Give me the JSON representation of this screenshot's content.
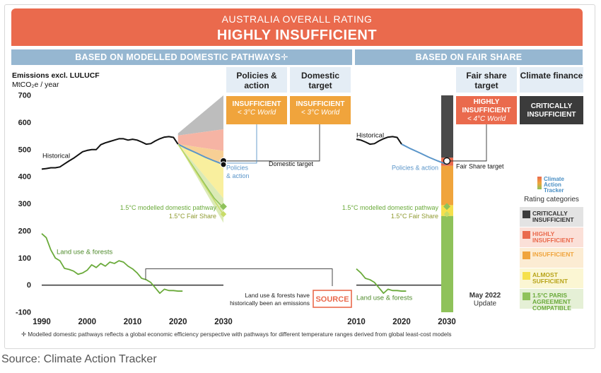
{
  "header": {
    "subtitle": "AUSTRALIA OVERALL RATING",
    "title": "HIGHLY INSUFFICIENT"
  },
  "sections": {
    "left": "BASED ON MODELLED DOMESTIC PATHWAYS✛",
    "right": "BASED ON FAIR SHARE"
  },
  "columns": {
    "policies": "Policies & action",
    "domestic": "Domestic target",
    "fairshare": "Fair share target",
    "finance": "Climate finance"
  },
  "ratings": {
    "policies": {
      "label": "INSUFFICIENT",
      "sub": "< 3°C World",
      "color": "#f0a43c"
    },
    "domestic": {
      "label": "INSUFFICIENT",
      "sub": "< 3°C World",
      "color": "#f0a43c"
    },
    "fairshare": {
      "label": "HIGHLY INSUFFICIENT",
      "sub": "< 4°C World",
      "color": "#ea6a4d"
    },
    "finance": {
      "label": "CRITICALLY INSUFFICIENT",
      "sub": "",
      "color": "#3b3b3b"
    }
  },
  "yaxis": {
    "title": "Emissions excl. LULUCF",
    "unit": "MtCO₂e / year"
  },
  "chart_data": [
    {
      "type": "line",
      "title": "",
      "ylim": [
        -100,
        700
      ],
      "yticks": [
        -100,
        0,
        100,
        200,
        300,
        400,
        500,
        600,
        700
      ],
      "xlim": [
        1990,
        2030
      ],
      "xticks": [
        1990,
        2000,
        2010,
        2020,
        2030
      ],
      "series": [
        {
          "name": "Historical",
          "color": "#111111",
          "x": [
            1990,
            1991,
            1992,
            1993,
            1994,
            1995,
            1996,
            1997,
            1998,
            1999,
            2000,
            2001,
            2002,
            2003,
            2004,
            2005,
            2006,
            2007,
            2008,
            2009,
            2010,
            2011,
            2012,
            2013,
            2014,
            2015,
            2016,
            2017,
            2018,
            2019,
            2020
          ],
          "y": [
            428,
            430,
            433,
            433,
            436,
            447,
            458,
            468,
            480,
            492,
            497,
            500,
            500,
            518,
            525,
            530,
            535,
            540,
            540,
            535,
            538,
            535,
            528,
            520,
            522,
            532,
            540,
            546,
            548,
            545,
            520
          ]
        },
        {
          "name": "Land use & forests",
          "color": "#6aaa3a",
          "x": [
            1990,
            1991,
            1992,
            1993,
            1994,
            1995,
            1996,
            1997,
            1998,
            1999,
            2000,
            2001,
            2002,
            2003,
            2004,
            2005,
            2006,
            2007,
            2008,
            2009,
            2010,
            2011,
            2012,
            2013,
            2014,
            2015,
            2016,
            2017,
            2018,
            2019,
            2020,
            2021
          ],
          "y": [
            190,
            175,
            130,
            100,
            90,
            62,
            58,
            52,
            40,
            45,
            55,
            75,
            65,
            80,
            70,
            85,
            80,
            90,
            85,
            70,
            60,
            45,
            25,
            20,
            10,
            -10,
            -30,
            -15,
            -20,
            -20,
            -22,
            -22
          ]
        },
        {
          "name": "Policies & action",
          "color": "#5a95c9",
          "x": [
            2020,
            2022,
            2024,
            2026,
            2028,
            2030
          ],
          "y": [
            520,
            503,
            488,
            472,
            458,
            445
          ]
        },
        {
          "name": "1.5°C modelled domestic pathway",
          "color": "#8fc25a",
          "x": [
            2020,
            2022,
            2024,
            2026,
            2028,
            2030
          ],
          "y": [
            520,
            470,
            420,
            370,
            320,
            285
          ]
        },
        {
          "name": "1.5°C Fair Share",
          "color": "#c8dc68",
          "x": [
            2020,
            2030
          ],
          "y": [
            520,
            260
          ]
        }
      ],
      "domestic_target": 2030,
      "domestic_target_value": 458,
      "annotations": {
        "historical": "Historical",
        "policies": "Policies & action",
        "domestic_target": "Domestic target",
        "pathway_15": "1.5°C modelled domestic pathway",
        "fairshare_15": "1.5°C Fair Share",
        "landuse": "Land use & forests",
        "landuse_note": "Land use & forests have historically been an emissions",
        "source_button": "SOURCE"
      }
    },
    {
      "type": "line",
      "title": "",
      "ylim": [
        -100,
        700
      ],
      "xlim": [
        2010,
        2030
      ],
      "xticks": [
        2010,
        2020,
        2030
      ],
      "series": [
        {
          "name": "Historical",
          "color": "#111111",
          "x": [
            2010,
            2011,
            2012,
            2013,
            2014,
            2015,
            2016,
            2017,
            2018,
            2019,
            2020
          ],
          "y": [
            538,
            535,
            528,
            520,
            522,
            532,
            540,
            546,
            548,
            545,
            520
          ]
        },
        {
          "name": "Policies & action",
          "color": "#5a95c9",
          "x": [
            2020,
            2022,
            2024,
            2026,
            2028,
            2030
          ],
          "y": [
            520,
            503,
            488,
            472,
            458,
            445
          ]
        },
        {
          "name": "Land use & forests",
          "color": "#6aaa3a",
          "x": [
            2010,
            2011,
            2012,
            2013,
            2014,
            2015,
            2016,
            2017,
            2018,
            2019,
            2020,
            2021
          ],
          "y": [
            60,
            45,
            25,
            20,
            10,
            -10,
            -30,
            -15,
            -20,
            -20,
            -22,
            -22
          ]
        }
      ],
      "fair_share_target_value": 458,
      "annotations": {
        "historical": "Historical",
        "policies": "Policies & action",
        "fairshare_target": "Fair Share target",
        "pathway_15": "1.5°C modelled domestic pathway",
        "fairshare_15": "1.5°C Fair Share",
        "landuse": "Land use & forests"
      }
    }
  ],
  "rating_legend": {
    "logo": [
      "Climate",
      "Action",
      "Tracker"
    ],
    "title": "Rating categories",
    "items": [
      {
        "label": "CRITICALLY INSUFFICIENT",
        "color": "#3b3b3b",
        "bg": "#e3e3e3",
        "text": "#333333"
      },
      {
        "label": "HIGHLY INSUFFICIENT",
        "color": "#ea6a4d",
        "bg": "#fbe0d8",
        "text": "#ea6a4d"
      },
      {
        "label": "INSUFFICIENT",
        "color": "#f0a43c",
        "bg": "#fcecd3",
        "text": "#f0a43c"
      },
      {
        "label": "ALMOST SUFFICIENT",
        "color": "#f5e04c",
        "bg": "#fbf6d3",
        "text": "#b8a41a"
      },
      {
        "label": "1.5°C PARIS AGREEMENT COMPATIBLE",
        "color": "#8fc25a",
        "bg": "#e5f0d6",
        "text": "#6aaa3a"
      }
    ]
  },
  "update": "May 2022 Update",
  "footnote": "✛ Modelled domestic pathways reflects a global economic efficiency perspective with pathways for different temperature ranges derived from global least-cost models",
  "source": "Source: Climate Action Tracker"
}
